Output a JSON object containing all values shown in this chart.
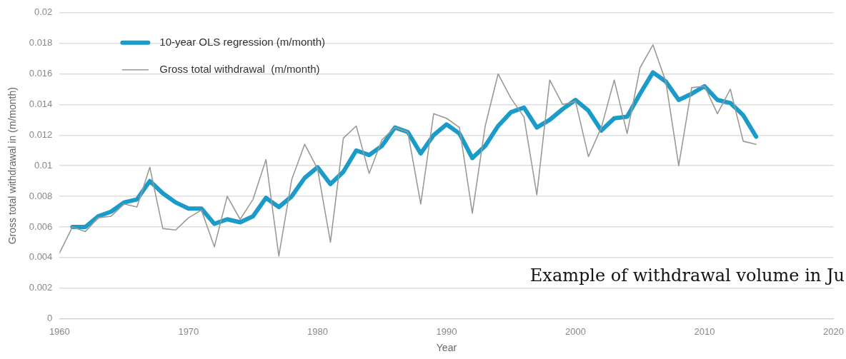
{
  "chart_data": {
    "type": "line",
    "xlabel": "Year",
    "ylabel": "Gross total withdrawal in (m/month)",
    "xlim": [
      1960,
      2020
    ],
    "xticks": [
      1960,
      1970,
      1980,
      1990,
      2000,
      2010,
      2020
    ],
    "ylim": [
      0,
      0.02
    ],
    "yticks": [
      0,
      0.002,
      0.004,
      0.006,
      0.008,
      0.01,
      0.012,
      0.014,
      0.016,
      0.018,
      0.02
    ],
    "grid": "y",
    "legend": "top left",
    "marker": "none",
    "line_style": "solid",
    "annotations": [
      "Example of withdrawal volume in Ju"
    ],
    "series": [
      {
        "name": "10-year OLS regression (m/month)",
        "color": "#1a9bc9",
        "x": [
          1961,
          1962,
          1963,
          1964,
          1965,
          1966,
          1967,
          1968,
          1969,
          1970,
          1971,
          1972,
          1973,
          1974,
          1975,
          1976,
          1977,
          1978,
          1979,
          1980,
          1981,
          1982,
          1983,
          1984,
          1985,
          1986,
          1987,
          1988,
          1989,
          1990,
          1991,
          1992,
          1993,
          1994,
          1995,
          1996,
          1997,
          1998,
          1999,
          2000,
          2001,
          2002,
          2003,
          2004,
          2005,
          2006,
          2007,
          2008,
          2009,
          2010,
          2011,
          2012,
          2013,
          2014
        ],
        "values": [
          0.006,
          0.006,
          0.0067,
          0.007,
          0.0076,
          0.0078,
          0.009,
          0.0082,
          0.0076,
          0.0072,
          0.0072,
          0.0062,
          0.0065,
          0.0063,
          0.0067,
          0.0079,
          0.0073,
          0.008,
          0.0092,
          0.0099,
          0.0088,
          0.0096,
          0.011,
          0.0107,
          0.0113,
          0.0125,
          0.0122,
          0.0108,
          0.012,
          0.0127,
          0.0121,
          0.0105,
          0.0113,
          0.0126,
          0.0135,
          0.0138,
          0.0125,
          0.013,
          0.0137,
          0.0143,
          0.0136,
          0.0123,
          0.0131,
          0.0132,
          0.0147,
          0.0161,
          0.0155,
          0.0143,
          0.0147,
          0.0152,
          0.0143,
          0.0141,
          0.0133,
          0.0119
        ]
      },
      {
        "name": "Gross total withdrawal  (m/month)",
        "color": "#9a9a94",
        "x": [
          1960,
          1961,
          1962,
          1963,
          1964,
          1965,
          1966,
          1967,
          1968,
          1969,
          1970,
          1971,
          1972,
          1973,
          1974,
          1975,
          1976,
          1977,
          1978,
          1979,
          1980,
          1981,
          1982,
          1983,
          1984,
          1985,
          1986,
          1987,
          1988,
          1989,
          1990,
          1991,
          1992,
          1993,
          1994,
          1995,
          1996,
          1997,
          1998,
          1999,
          2000,
          2001,
          2002,
          2003,
          2004,
          2005,
          2006,
          2007,
          2008,
          2009,
          2010,
          2011,
          2012,
          2013,
          2014
        ],
        "values": [
          0.0043,
          0.006,
          0.0057,
          0.0066,
          0.0067,
          0.0075,
          0.0073,
          0.0099,
          0.0059,
          0.0058,
          0.0066,
          0.0071,
          0.0047,
          0.008,
          0.0065,
          0.0078,
          0.0104,
          0.0041,
          0.0091,
          0.0114,
          0.0098,
          0.005,
          0.0118,
          0.0126,
          0.0095,
          0.0117,
          0.0125,
          0.0122,
          0.0075,
          0.0134,
          0.0131,
          0.0125,
          0.0069,
          0.0126,
          0.016,
          0.0144,
          0.0132,
          0.0081,
          0.0156,
          0.014,
          0.0142,
          0.0106,
          0.0125,
          0.0156,
          0.0121,
          0.0164,
          0.0179,
          0.0155,
          0.01,
          0.0151,
          0.0152,
          0.0134,
          0.015,
          0.0116,
          0.0114
        ]
      }
    ]
  }
}
